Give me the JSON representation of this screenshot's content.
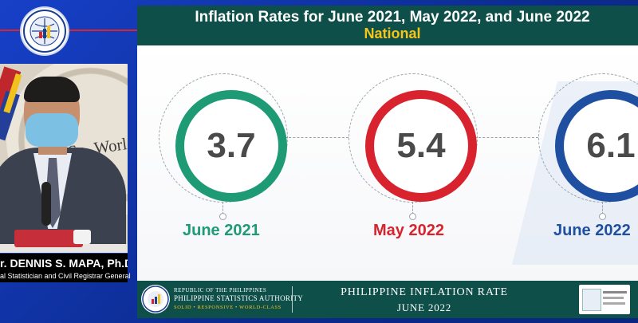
{
  "speaker": {
    "name": "r. DENNIS S. MAPA, Ph.D.",
    "title": "al Statistician and Civil Registrar General",
    "backdrop_text": "ASp  World-cl"
  },
  "slide": {
    "title": "Inflation Rates for June 2021, May 2022, and June 2022",
    "subtitle": "National",
    "rates": [
      {
        "value": "3.7",
        "label": "June 2021",
        "color": "#1e9a74"
      },
      {
        "value": "5.4",
        "label": "May 2022",
        "color": "#d8232e"
      },
      {
        "value": "6.1",
        "label": "June 2022",
        "color": "#1f4fa0"
      }
    ],
    "footer": {
      "org_line1": "REPUBLIC OF THE PHILIPPINES",
      "org_line2": "PHILIPPINE STATISTICS AUTHORITY",
      "org_motto": "SOLID • RESPONSIVE • WORLD-CLASS",
      "report_title": "PHILIPPINE INFLATION RATE",
      "report_date": "JUNE 2022"
    }
  },
  "colors": {
    "header_bg": "#0f4f49",
    "accent_yellow": "#f5c518",
    "screen_bg": "#0d2f9e",
    "line_red": "#d8242b"
  }
}
